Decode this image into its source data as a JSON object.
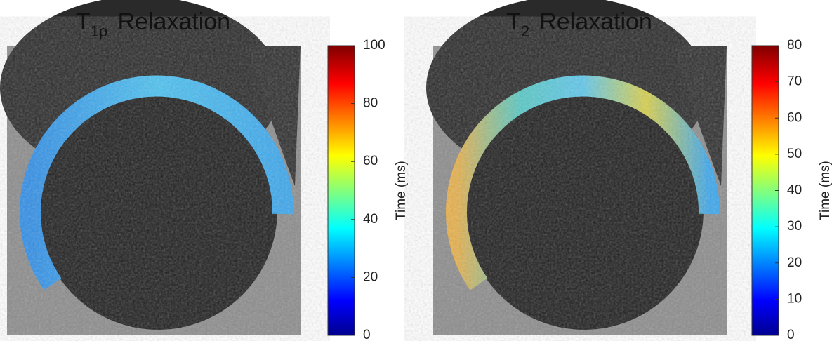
{
  "panels": [
    {
      "title": {
        "base": "T",
        "sub": "1ρ",
        "text": "Relaxation"
      },
      "colorbar": {
        "label": "Time (ms)",
        "lim": [
          0,
          100
        ],
        "ticks": [
          0,
          20,
          40,
          60,
          80,
          100
        ]
      }
    },
    {
      "title": {
        "base": "T",
        "sub": "2",
        "text": "Relaxation"
      },
      "colorbar": {
        "label": "Time (ms)",
        "lim": [
          0,
          80
        ],
        "ticks": [
          0,
          10,
          20,
          30,
          40,
          50,
          60,
          70,
          80
        ]
      }
    }
  ]
}
